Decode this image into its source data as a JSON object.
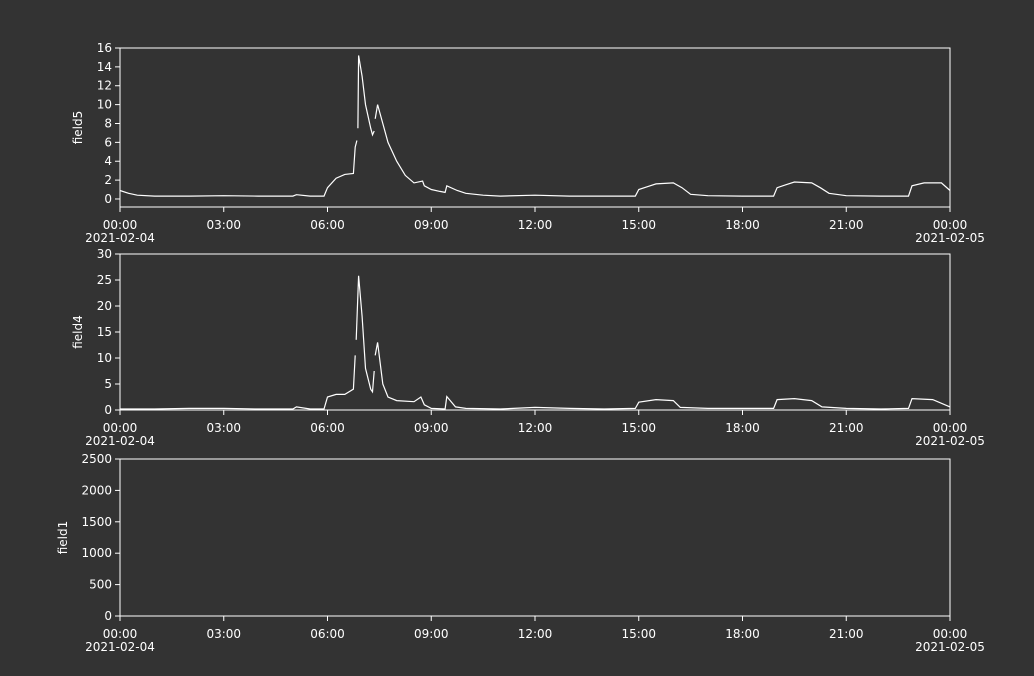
{
  "chart_data": [
    {
      "type": "line",
      "ylabel": "field5",
      "xlim": [
        0,
        24
      ],
      "ylim": [
        -0.85,
        16
      ],
      "yticks": [
        0,
        2,
        4,
        6,
        8,
        10,
        12,
        14,
        16
      ],
      "xticks": [
        {
          "value": 0,
          "label": "00:00"
        },
        {
          "value": 3,
          "label": "03:00"
        },
        {
          "value": 6,
          "label": "06:00"
        },
        {
          "value": 9,
          "label": "09:00"
        },
        {
          "value": 12,
          "label": "12:00"
        },
        {
          "value": 15,
          "label": "15:00"
        },
        {
          "value": 18,
          "label": "18:00"
        },
        {
          "value": 21,
          "label": "21:00"
        },
        {
          "value": 24,
          "label": "00:00"
        }
      ],
      "x_dates": [
        {
          "value": 0,
          "label": "2021-02-04"
        },
        {
          "value": 24,
          "label": "2021-02-05"
        }
      ],
      "x": [
        0,
        0.25,
        0.5,
        1,
        2,
        3,
        4,
        5,
        5.1,
        5.5,
        5.9,
        6,
        6.25,
        6.5,
        6.75,
        6.8,
        6.85,
        6.86,
        6.88,
        6.9,
        7.0,
        7.1,
        7.25,
        7.3,
        7.35,
        7.36,
        7.38,
        7.45,
        7.6,
        7.75,
        8,
        8.25,
        8.5,
        8.75,
        8.8,
        9,
        9.25,
        9.4,
        9.45,
        9.75,
        10,
        10.5,
        11,
        12,
        13,
        14,
        14.9,
        15,
        15.25,
        15.5,
        16,
        16.25,
        16.5,
        17,
        18,
        18.9,
        19,
        19.25,
        19.5,
        20,
        20.25,
        20.5,
        21,
        22,
        22.8,
        22.9,
        23.25,
        23.75,
        24
      ],
      "series": [
        {
          "name": "field5",
          "color": "#ffffff",
          "values": [
            0.9,
            0.6,
            0.4,
            0.3,
            0.3,
            0.35,
            0.3,
            0.3,
            0.45,
            0.3,
            0.3,
            1.2,
            2.2,
            2.6,
            2.7,
            5.5,
            6.2,
            null,
            7.5,
            15.2,
            13,
            10,
            7.5,
            6.8,
            7.2,
            null,
            8.5,
            10,
            8,
            6,
            4,
            2.5,
            1.7,
            1.9,
            1.4,
            1.0,
            0.8,
            0.7,
            1.4,
            0.9,
            0.6,
            0.4,
            0.3,
            0.4,
            0.3,
            0.3,
            0.3,
            1.0,
            1.3,
            1.6,
            1.7,
            1.2,
            0.5,
            0.35,
            0.3,
            0.3,
            1.2,
            1.5,
            1.8,
            1.7,
            1.2,
            0.6,
            0.35,
            0.3,
            0.3,
            1.4,
            1.7,
            1.7,
            0.9
          ]
        }
      ]
    },
    {
      "type": "line",
      "ylabel": "field4",
      "xlim": [
        0,
        24
      ],
      "ylim": [
        0,
        30
      ],
      "yticks": [
        0,
        5,
        10,
        15,
        20,
        25,
        30
      ],
      "xticks": [
        {
          "value": 0,
          "label": "00:00"
        },
        {
          "value": 3,
          "label": "03:00"
        },
        {
          "value": 6,
          "label": "06:00"
        },
        {
          "value": 9,
          "label": "09:00"
        },
        {
          "value": 12,
          "label": "12:00"
        },
        {
          "value": 15,
          "label": "15:00"
        },
        {
          "value": 18,
          "label": "18:00"
        },
        {
          "value": 21,
          "label": "21:00"
        },
        {
          "value": 24,
          "label": "00:00"
        }
      ],
      "x_dates": [
        {
          "value": 0,
          "label": "2021-02-04"
        },
        {
          "value": 24,
          "label": "2021-02-05"
        }
      ],
      "x": [
        0,
        1,
        2,
        3,
        4,
        5,
        5.1,
        5.5,
        5.9,
        6,
        6.25,
        6.5,
        6.75,
        6.8,
        6.81,
        6.83,
        6.9,
        7.0,
        7.1,
        7.25,
        7.3,
        7.35,
        7.36,
        7.38,
        7.45,
        7.6,
        7.75,
        8,
        8.5,
        8.7,
        8.8,
        9,
        9.4,
        9.45,
        9.7,
        10,
        11,
        12,
        13,
        14,
        14.9,
        15,
        15.5,
        16,
        16.2,
        17,
        18,
        18.9,
        19,
        19.5,
        20,
        20.3,
        21,
        22,
        22.8,
        22.9,
        23.5,
        24
      ],
      "series": [
        {
          "name": "field4",
          "color": "#ffffff",
          "values": [
            0.2,
            0.2,
            0.3,
            0.3,
            0.2,
            0.2,
            0.6,
            0.2,
            0.2,
            2.5,
            3,
            3,
            4,
            10.5,
            null,
            13.5,
            25.8,
            18,
            8,
            4,
            3.5,
            7.5,
            null,
            10.5,
            13,
            5,
            2.5,
            1.8,
            1.6,
            2.5,
            1.0,
            0.3,
            0.2,
            2.6,
            0.6,
            0.3,
            0.2,
            0.5,
            0.3,
            0.2,
            0.3,
            1.5,
            2.0,
            1.8,
            0.5,
            0.3,
            0.3,
            0.3,
            2.0,
            2.2,
            1.8,
            0.6,
            0.3,
            0.2,
            0.3,
            2.2,
            2.0,
            0.6
          ]
        }
      ]
    },
    {
      "type": "line",
      "ylabel": "field1",
      "xlim": [
        0,
        24
      ],
      "ylim": [
        0,
        2500
      ],
      "yticks": [
        0,
        500,
        1000,
        1500,
        2000,
        2500
      ],
      "xticks": [
        {
          "value": 0,
          "label": "00:00"
        },
        {
          "value": 3,
          "label": "03:00"
        },
        {
          "value": 6,
          "label": "06:00"
        },
        {
          "value": 9,
          "label": "09:00"
        },
        {
          "value": 12,
          "label": "12:00"
        },
        {
          "value": 15,
          "label": "15:00"
        },
        {
          "value": 18,
          "label": "18:00"
        },
        {
          "value": 21,
          "label": "21:00"
        },
        {
          "value": 24,
          "label": "00:00"
        }
      ],
      "x_dates": [
        {
          "value": 0,
          "label": "2021-02-04"
        },
        {
          "value": 24,
          "label": "2021-02-05"
        }
      ],
      "x": [],
      "series": []
    }
  ]
}
